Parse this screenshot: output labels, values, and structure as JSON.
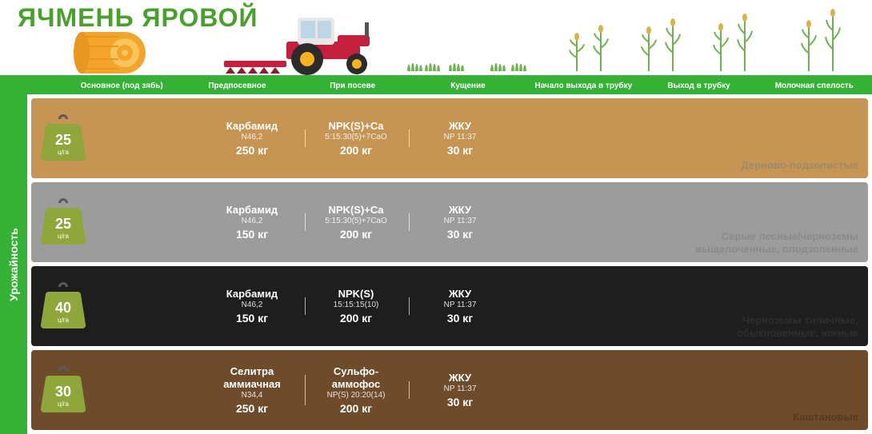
{
  "title": "ЯЧМЕНЬ ЯРОВОЙ",
  "colors": {
    "header_green": "#35b135",
    "title_green": "#4aa02c",
    "row_bg": [
      "#c79553",
      "#9c9c9c",
      "#1e1e1e",
      "#6e4b2b"
    ],
    "weight_bg": [
      "#8fa63b",
      "#8fa63b",
      "#8fa63b",
      "#8fa63b"
    ],
    "soil_label": [
      "#9b8a6c",
      "#8a8a8a",
      "#2e2e2e",
      "#523a22"
    ],
    "tractor_body": "#c3203d",
    "tractor_dark": "#8e1a2f",
    "tractor_cab": "#e8e8e8",
    "wheel": "#2b2b2b",
    "hub": "#f7b21f",
    "hay_outer": "#f2a52a",
    "hay_inner": "#f7c55a",
    "plant_green": "#6fb24f"
  },
  "header_columns": [
    "Основное (под зябь)",
    "Предпосевное",
    "При посеве",
    "Кущение",
    "Начало выхода в трубку",
    "Выход в трубку",
    "Молочная спелость"
  ],
  "yield_sidebar_label": "Урожайность",
  "weight_unit": "ц/га",
  "rows": [
    {
      "yield": "25",
      "soil_name": "Дерново-подзолистые",
      "cells": [
        null,
        {
          "name": "Карбамид",
          "formula": "N46,2",
          "amount": "250 кг"
        },
        {
          "name": "NPK(S)+Ca",
          "formula": "5:15:30(5)+7CaO",
          "amount": "200 кг"
        },
        {
          "name": "ЖКУ",
          "formula": "NP 11:37",
          "amount": "30 кг"
        }
      ]
    },
    {
      "yield": "25",
      "soil_name": "Серые лесные/черноземы\nвыщелоченные, оподзоленные",
      "cells": [
        null,
        {
          "name": "Карбамид",
          "formula": "N46,2",
          "amount": "150 кг"
        },
        {
          "name": "NPK(S)+Ca",
          "formula": "5:15:30(5)+7CaO",
          "amount": "200 кг"
        },
        {
          "name": "ЖКУ",
          "formula": "NP 11:37",
          "amount": "30 кг"
        }
      ]
    },
    {
      "yield": "40",
      "soil_name": "Черноземы типичные,\nобыкновенные, южные",
      "cells": [
        null,
        {
          "name": "Карбамид",
          "formula": "N46,2",
          "amount": "150 кг"
        },
        {
          "name": "NPK(S)",
          "formula": "15:15:15(10)",
          "amount": "200 кг"
        },
        {
          "name": "ЖКУ",
          "formula": "NP 11:37",
          "amount": "30 кг"
        }
      ]
    },
    {
      "yield": "30",
      "soil_name": "Каштановые",
      "cells": [
        null,
        {
          "name": "Селитра\nаммиачная",
          "formula": "N34,4",
          "amount": "250 кг"
        },
        {
          "name": "Сульфо-\nаммофос",
          "formula": "NP(S) 20:20(14)",
          "amount": "200 кг"
        },
        {
          "name": "ЖКУ",
          "formula": "NP 11:37",
          "amount": "30 кг"
        }
      ]
    }
  ],
  "decor": {
    "grass_positions": [
      506,
      528,
      558,
      610,
      636
    ],
    "plant_positions": [
      710,
      740,
      800,
      830,
      890,
      920,
      1000,
      1030
    ],
    "plant_heights": [
      48,
      58,
      56,
      66,
      60,
      72,
      64,
      78
    ]
  }
}
